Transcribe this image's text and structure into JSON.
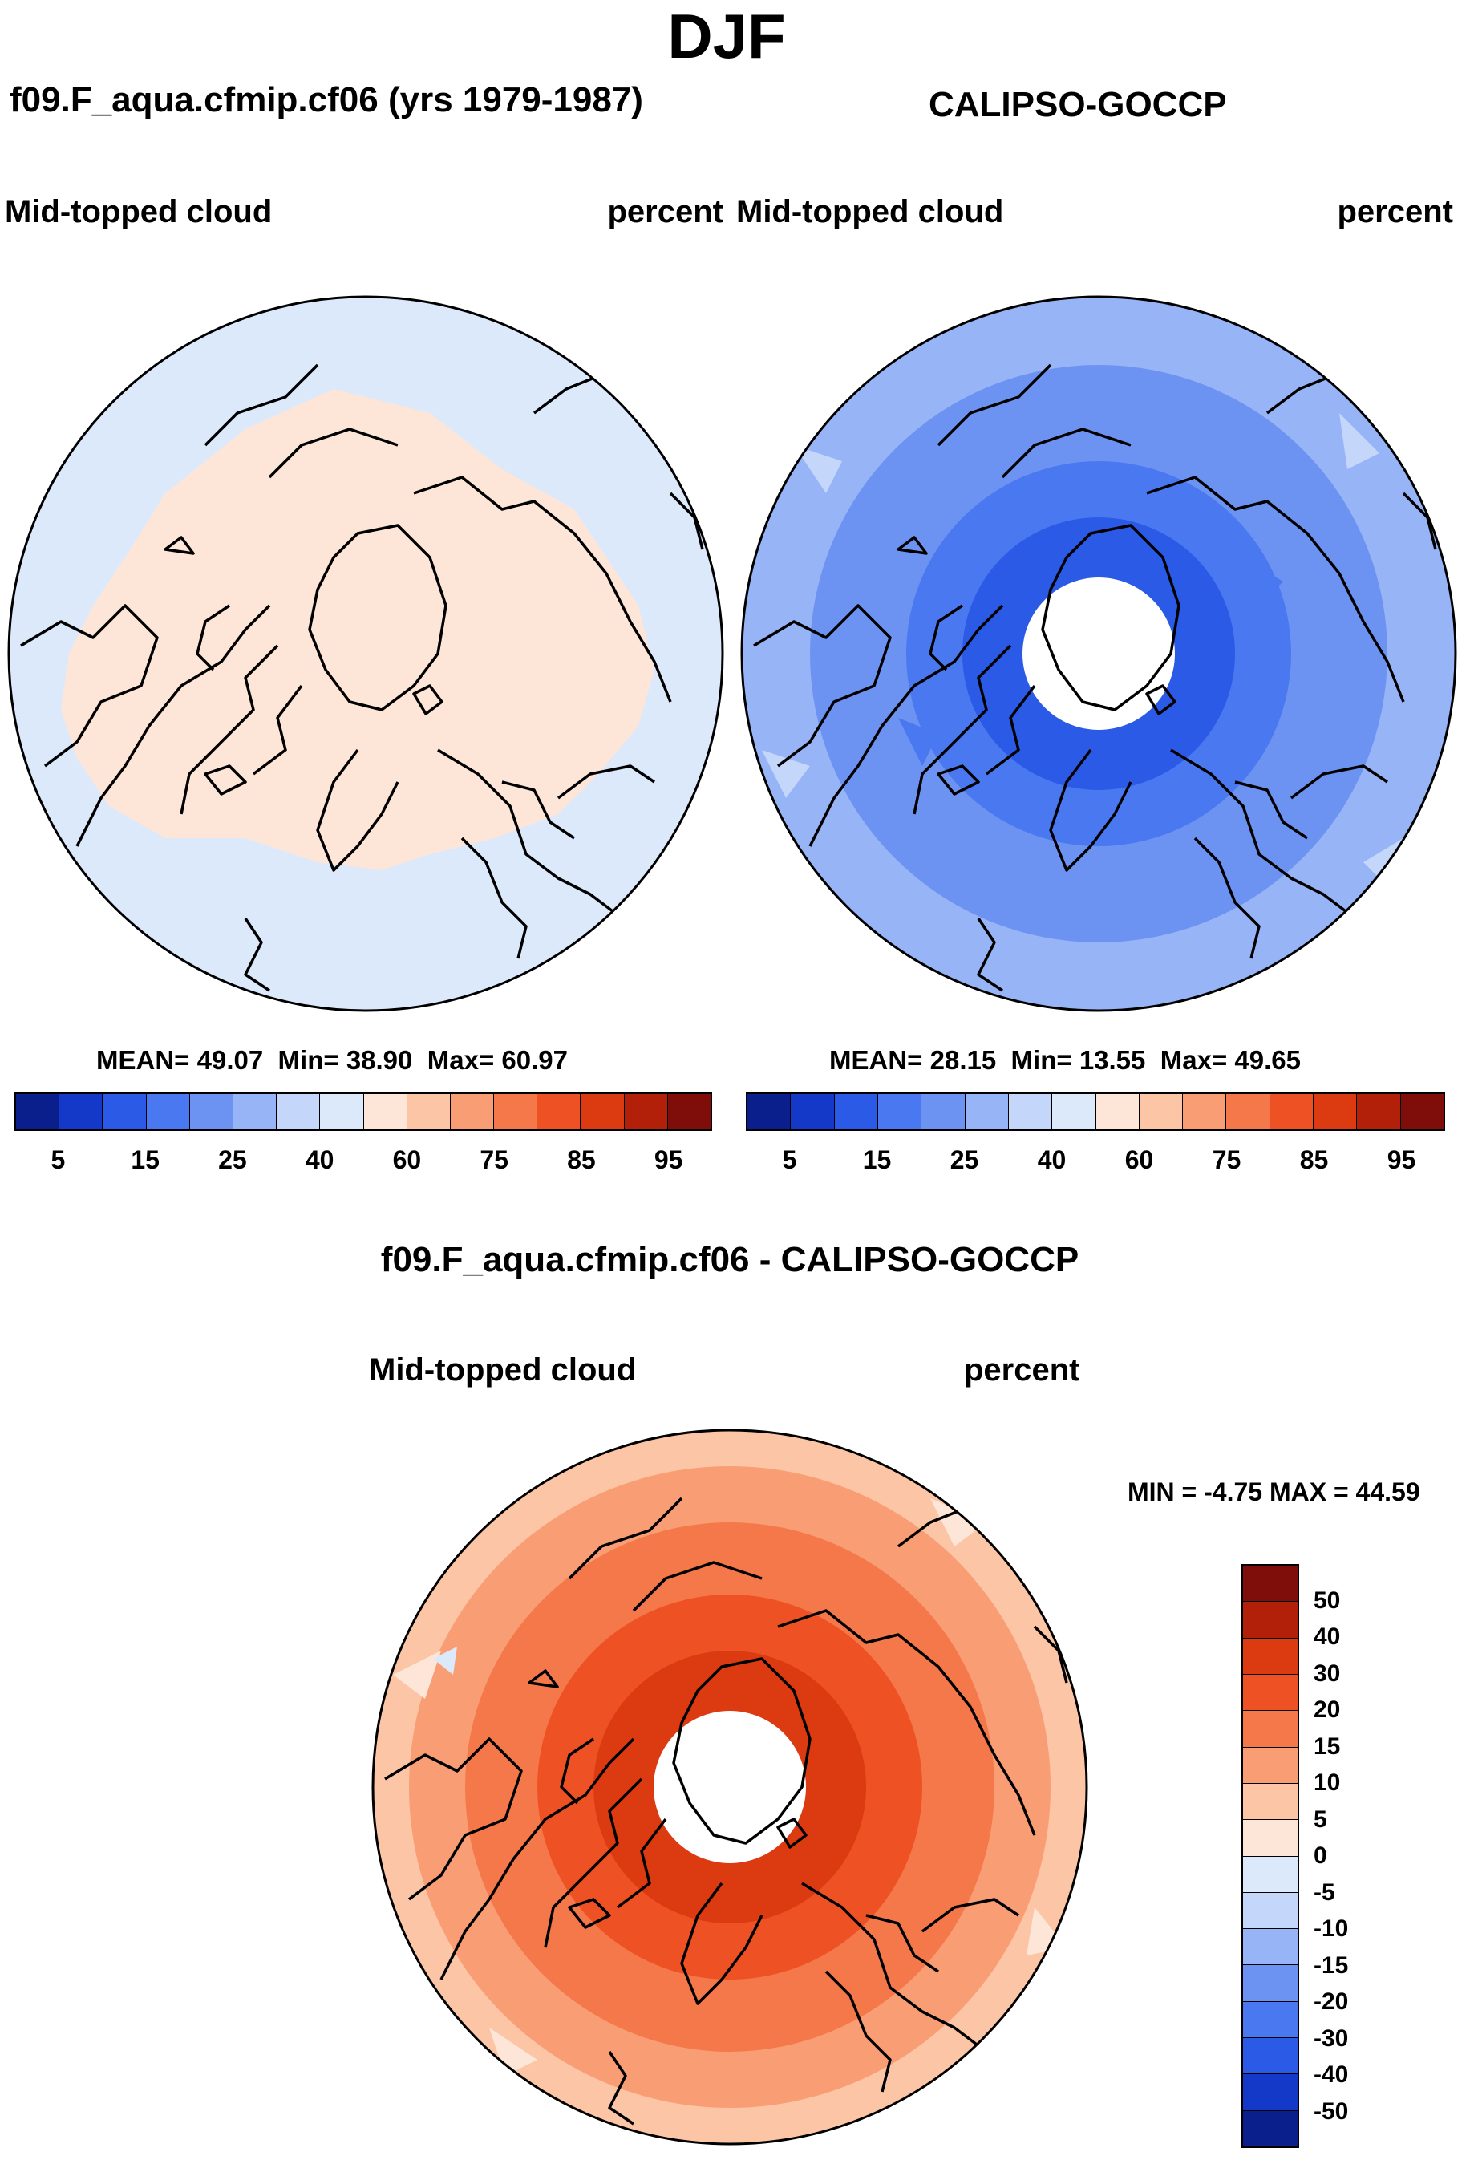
{
  "figure": {
    "season": "DJF",
    "left_panel_title": "f09.F_aqua.cfmip.cf06 (yrs 1979-1987)",
    "right_panel_title": "CALIPSO-GOCCP",
    "diff_title": "f09.F_aqua.cfmip.cf06 - CALIPSO-GOCCP"
  },
  "panels": {
    "model": {
      "variable": "Mid-topped cloud",
      "units": "percent",
      "stats": {
        "mean_label": "MEAN=",
        "mean": "49.07",
        "min_label": "Min=",
        "min": "38.90",
        "max_label": "Max=",
        "max": "60.97"
      }
    },
    "obs": {
      "variable": "Mid-topped cloud",
      "units": "percent",
      "stats": {
        "mean_label": "MEAN=",
        "mean": "28.15",
        "min_label": "Min=",
        "min": "13.55",
        "max_label": "Max=",
        "max": "49.65"
      }
    },
    "diff": {
      "variable": "Mid-topped cloud",
      "units": "percent",
      "stats": {
        "min_label": "MIN =",
        "min": "-4.75",
        "max_label": "MAX =",
        "max": "44.59"
      }
    }
  },
  "colorbar_abs": {
    "colors": [
      "#0a1e8c",
      "#1438c8",
      "#2a5ae6",
      "#4a78f0",
      "#6d93f2",
      "#97b4f6",
      "#c4d6fa",
      "#dce9fb",
      "#fde6d8",
      "#fcc6a6",
      "#f99e74",
      "#f5784a",
      "#ee5124",
      "#dc3a10",
      "#b3200a",
      "#7f0e0a"
    ],
    "tick_labels": [
      "5",
      "15",
      "25",
      "40",
      "60",
      "75",
      "85",
      "95"
    ]
  },
  "colorbar_diff": {
    "colors": [
      "#7f0e0a",
      "#b3200a",
      "#dc3a10",
      "#ee5124",
      "#f5784a",
      "#f99e74",
      "#fcc6a6",
      "#fde6d8",
      "#dce9fb",
      "#c4d6fa",
      "#97b4f6",
      "#6d93f2",
      "#4a78f0",
      "#2a5ae6",
      "#1438c8",
      "#0a1e8c"
    ],
    "tick_labels": [
      "50",
      "40",
      "30",
      "20",
      "15",
      "10",
      "5",
      "0",
      "-5",
      "-10",
      "-15",
      "-20",
      "-30",
      "-40",
      "-50"
    ]
  }
}
